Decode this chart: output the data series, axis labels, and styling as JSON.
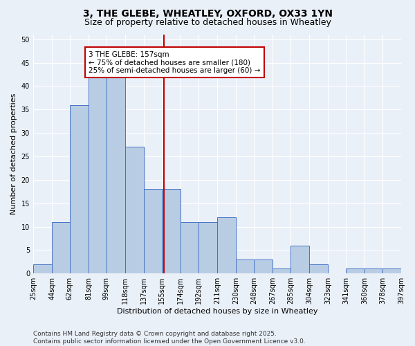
{
  "title": "3, THE GLEBE, WHEATLEY, OXFORD, OX33 1YN",
  "subtitle": "Size of property relative to detached houses in Wheatley",
  "xlabel": "Distribution of detached houses by size in Wheatley",
  "ylabel": "Number of detached properties",
  "bins": [
    25,
    44,
    62,
    81,
    99,
    118,
    137,
    155,
    174,
    192,
    211,
    230,
    248,
    267,
    285,
    304,
    323,
    341,
    360,
    378,
    397
  ],
  "bin_labels": [
    "25sqm",
    "44sqm",
    "62sqm",
    "81sqm",
    "99sqm",
    "118sqm",
    "137sqm",
    "155sqm",
    "174sqm",
    "192sqm",
    "211sqm",
    "230sqm",
    "248sqm",
    "267sqm",
    "285sqm",
    "304sqm",
    "323sqm",
    "341sqm",
    "360sqm",
    "378sqm",
    "397sqm"
  ],
  "values": [
    2,
    11,
    36,
    42,
    42,
    27,
    18,
    18,
    11,
    11,
    12,
    3,
    3,
    1,
    6,
    2,
    0,
    1,
    1,
    1
  ],
  "bar_color": "#b8cce4",
  "bar_edge_color": "#4472c4",
  "property_size": 157,
  "vline_color": "#c00000",
  "annotation_text": "3 THE GLEBE: 157sqm\n← 75% of detached houses are smaller (180)\n25% of semi-detached houses are larger (60) →",
  "annotation_box_color": "#ffffff",
  "annotation_box_edge": "#c00000",
  "ylim": [
    0,
    51
  ],
  "yticks": [
    0,
    5,
    10,
    15,
    20,
    25,
    30,
    35,
    40,
    45,
    50
  ],
  "bg_color": "#eaf0f8",
  "footer": "Contains HM Land Registry data © Crown copyright and database right 2025.\nContains public sector information licensed under the Open Government Licence v3.0.",
  "title_fontsize": 10,
  "subtitle_fontsize": 9,
  "axis_label_fontsize": 8,
  "tick_fontsize": 7,
  "annotation_fontsize": 7.5,
  "footer_fontsize": 6.5
}
